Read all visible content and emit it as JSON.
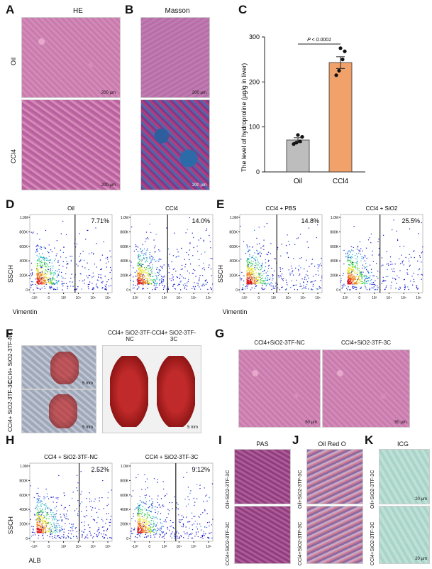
{
  "panels": {
    "A": {
      "label": "A",
      "title": "HE",
      "rows": [
        "Oil",
        "CCl4"
      ],
      "scale": "200 µm"
    },
    "B": {
      "label": "B",
      "title": "Masson",
      "scale": "200 µm"
    },
    "C": {
      "label": "C",
      "ylabel": "The level of hydroproline (µg/g in liver)",
      "pvalue": "P < 0.0001"
    },
    "D": {
      "label": "D",
      "ylabel": "SSCH",
      "xlabel": "Vimentin",
      "plots": [
        {
          "title": "Oil",
          "pct": "7.71%"
        },
        {
          "title": "CCl4",
          "pct": "14.0%"
        }
      ]
    },
    "E": {
      "label": "E",
      "ylabel": "SSCH",
      "xlabel": "Vimentin",
      "plots": [
        {
          "title": "CCl4 + PBS",
          "pct": "14.8%"
        },
        {
          "title": "CCl4 + SiO2",
          "pct": "25.5%"
        }
      ]
    },
    "F": {
      "label": "F",
      "left_rows": [
        "CCl4+ SiO2-3TF-NC",
        "CCl4+ SiO2-3TF-3C"
      ],
      "right_cols": [
        "CCl4+ SiO2-3TF-NC",
        "CCl4+ SiO2-3TF-3C"
      ],
      "scale": "5 mm"
    },
    "G": {
      "label": "G",
      "cols": [
        "CCl4+SiO2-3TF-NC",
        "CCl4+SiO2-3TF-3C"
      ],
      "scale": "50 µm"
    },
    "H": {
      "label": "H",
      "ylabel": "SSCH",
      "xlabel": "ALB",
      "plots": [
        {
          "title": "CCl4 + SiO2-3TF-NC",
          "pct": "2.52%"
        },
        {
          "title": "CCl4 + SiO2-3TF-3C",
          "pct": "9.12%"
        }
      ]
    },
    "I": {
      "label": "I",
      "title": "PAS",
      "rows": [
        "Oil+SiO2-3TF-3C",
        "CCl4+SiO2-3TF-3C"
      ]
    },
    "J": {
      "label": "J",
      "title": "Oil Red O"
    },
    "K": {
      "label": "K",
      "title": "ICG",
      "scale": "20 µm"
    }
  },
  "flow_ticks": {
    "y": [
      "1.0M",
      "800K",
      "600K",
      "400K",
      "200K",
      "0"
    ],
    "x": [
      "-10³",
      "0",
      "10³",
      "10⁴",
      "10⁵",
      "10⁶"
    ]
  },
  "chart_data": {
    "type": "bar",
    "categories": [
      "Oil",
      "CCl4"
    ],
    "values": [
      71,
      243
    ],
    "errors": [
      5,
      13
    ],
    "points": [
      [
        62,
        65,
        68,
        78,
        82
      ],
      [
        215,
        225,
        250,
        268,
        275
      ]
    ],
    "colors": [
      "#bdbdbd",
      "#f0a26a"
    ],
    "ylim": [
      0,
      300
    ],
    "yticks": [
      0,
      100,
      200,
      300
    ],
    "ylabel": "The level of hydroproline (µg/g in liver)",
    "annotation": "P < 0.0001"
  }
}
